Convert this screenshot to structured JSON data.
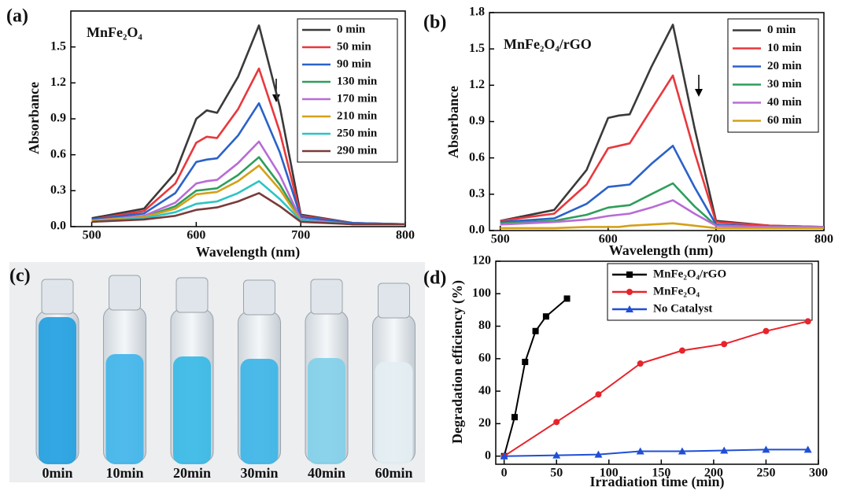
{
  "chart_data": [
    {
      "type": "line",
      "panel_label": "(a)",
      "title": "MnFe₂O₄",
      "x_label": "Wavelength (nm)",
      "y_label": "Absorbance",
      "x": [
        500,
        550,
        580,
        600,
        610,
        620,
        640,
        660,
        680,
        700,
        750,
        800
      ],
      "xlim": [
        480,
        800
      ],
      "xticks": [
        500,
        600,
        700,
        800
      ],
      "ylim": [
        0,
        1.8
      ],
      "yticks": [
        {
          "value": 0,
          "label": "0.0"
        },
        0.3,
        0.6,
        0.9,
        1.2,
        1.5
      ],
      "series": [
        {
          "name": "0 min",
          "color": "#3a3a3a",
          "values": [
            0.07,
            0.15,
            0.45,
            0.9,
            0.97,
            0.95,
            1.25,
            1.68,
            1.0,
            0.1,
            0.03,
            0.02
          ]
        },
        {
          "name": "50 min",
          "color": "#e8383d",
          "values": [
            0.06,
            0.13,
            0.36,
            0.7,
            0.75,
            0.74,
            0.98,
            1.32,
            0.79,
            0.09,
            0.03,
            0.02
          ]
        },
        {
          "name": "90 min",
          "color": "#2a62c9",
          "values": [
            0.06,
            0.11,
            0.28,
            0.54,
            0.56,
            0.57,
            0.76,
            1.03,
            0.62,
            0.08,
            0.03,
            0.02
          ]
        },
        {
          "name": "130 min",
          "color": "#2e9e5b",
          "values": [
            0.05,
            0.08,
            0.17,
            0.3,
            0.31,
            0.32,
            0.43,
            0.58,
            0.35,
            0.06,
            0.02,
            0.02
          ]
        },
        {
          "name": "170 min",
          "color": "#b86bd6",
          "values": [
            0.05,
            0.09,
            0.2,
            0.36,
            0.38,
            0.39,
            0.53,
            0.71,
            0.43,
            0.06,
            0.02,
            0.02
          ]
        },
        {
          "name": "210 min",
          "color": "#d4a017",
          "values": [
            0.05,
            0.08,
            0.15,
            0.27,
            0.28,
            0.29,
            0.38,
            0.51,
            0.31,
            0.05,
            0.02,
            0.02
          ]
        },
        {
          "name": "250 min",
          "color": "#2cc4c4",
          "values": [
            0.04,
            0.07,
            0.12,
            0.19,
            0.2,
            0.21,
            0.28,
            0.38,
            0.23,
            0.05,
            0.02,
            0.02
          ]
        },
        {
          "name": "290 min",
          "color": "#7a3b3b",
          "values": [
            0.04,
            0.06,
            0.09,
            0.14,
            0.15,
            0.16,
            0.21,
            0.28,
            0.17,
            0.04,
            0.02,
            0.02
          ]
        }
      ]
    },
    {
      "type": "line",
      "panel_label": "(b)",
      "title": "MnFe₂O₄/rGO",
      "x_label": "Wavelength (nm)",
      "y_label": "Absorbance",
      "x": [
        500,
        550,
        580,
        600,
        610,
        620,
        640,
        660,
        680,
        700,
        750,
        800
      ],
      "xlim": [
        490,
        800
      ],
      "xticks": [
        500,
        600,
        700,
        800
      ],
      "ylim": [
        0,
        1.8
      ],
      "yticks": [
        {
          "value": 0,
          "label": "0.0"
        },
        0.3,
        0.6,
        0.9,
        1.2,
        1.5,
        1.8
      ],
      "series": [
        {
          "name": "0 min",
          "color": "#3a3a3a",
          "values": [
            0.08,
            0.17,
            0.5,
            0.93,
            0.95,
            0.96,
            1.35,
            1.7,
            0.85,
            0.08,
            0.04,
            0.03
          ]
        },
        {
          "name": "10 min",
          "color": "#e8383d",
          "values": [
            0.08,
            0.14,
            0.38,
            0.68,
            0.7,
            0.72,
            1.0,
            1.28,
            0.65,
            0.07,
            0.04,
            0.03
          ]
        },
        {
          "name": "20 min",
          "color": "#2a62c9",
          "values": [
            0.07,
            0.1,
            0.22,
            0.36,
            0.37,
            0.38,
            0.55,
            0.7,
            0.36,
            0.05,
            0.03,
            0.03
          ]
        },
        {
          "name": "30 min",
          "color": "#2e9e5b",
          "values": [
            0.06,
            0.08,
            0.13,
            0.19,
            0.2,
            0.21,
            0.3,
            0.39,
            0.2,
            0.04,
            0.03,
            0.03
          ]
        },
        {
          "name": "40 min",
          "color": "#b86bd6",
          "values": [
            0.05,
            0.07,
            0.09,
            0.12,
            0.13,
            0.14,
            0.19,
            0.25,
            0.14,
            0.04,
            0.03,
            0.03
          ]
        },
        {
          "name": "60 min",
          "color": "#d4a017",
          "values": [
            0.02,
            0.02,
            0.03,
            0.03,
            0.03,
            0.04,
            0.05,
            0.06,
            0.04,
            0.02,
            0.02,
            0.02
          ]
        }
      ]
    },
    {
      "type": "line",
      "panel_label": "(d)",
      "x_label": "Irradiation time (min)",
      "y_label": "Degradation efficiency (%)",
      "xlim": [
        -8,
        300
      ],
      "xticks": [
        0,
        50,
        100,
        150,
        200,
        250,
        300
      ],
      "ylim": [
        -5,
        120
      ],
      "yticks": [
        0,
        20,
        40,
        60,
        80,
        100,
        120
      ],
      "series": [
        {
          "name": "MnFe₂O₄/rGO",
          "color": "#000000",
          "marker": "square",
          "x": [
            0,
            10,
            20,
            30,
            40,
            60
          ],
          "values": [
            0,
            24,
            58,
            77,
            86,
            97
          ]
        },
        {
          "name": "MnFe₂O₄",
          "color": "#e8232a",
          "marker": "circle",
          "x": [
            0,
            50,
            90,
            130,
            170,
            210,
            250,
            290
          ],
          "values": [
            0,
            21,
            38,
            57,
            65,
            69,
            77,
            83
          ]
        },
        {
          "name": "No Catalyst",
          "color": "#1f4fd6",
          "marker": "triangle",
          "x": [
            0,
            50,
            90,
            130,
            170,
            210,
            250,
            290
          ],
          "values": [
            0,
            0.5,
            1,
            3,
            3,
            3.5,
            4,
            4
          ]
        }
      ]
    }
  ],
  "photo": {
    "panel_label": "(c)",
    "labels": [
      "0min",
      "10min",
      "20min",
      "30min",
      "40min",
      "60min"
    ]
  }
}
